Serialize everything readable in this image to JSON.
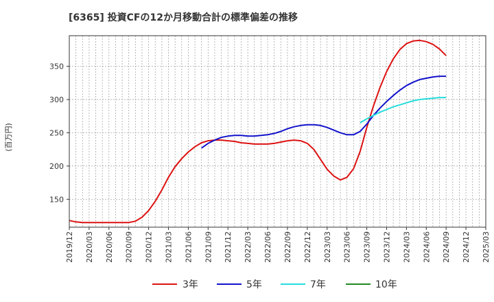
{
  "chart_data": {
    "type": "line",
    "title": "[6365]  投資CFの12か月移動合計の標準偏差の推移",
    "ylabel": "(百万円)",
    "xlabel": "",
    "ylim": [
      108,
      396
    ],
    "yticks": [
      150,
      200,
      250,
      300,
      350
    ],
    "xticks": [
      "2019/12",
      "2020/03",
      "2020/06",
      "2020/09",
      "2020/12",
      "2021/03",
      "2021/06",
      "2021/09",
      "2021/12",
      "2022/03",
      "2022/06",
      "2022/09",
      "2022/12",
      "2023/03",
      "2023/06",
      "2023/09",
      "2023/12",
      "2024/03",
      "2024/06",
      "2024/09",
      "2024/12",
      "2025/03"
    ],
    "grid": true,
    "legend_position": "bottom",
    "series": [
      {
        "name": "3年",
        "color": "#dd1111",
        "x": [
          "2019/12",
          "2020/01",
          "2020/02",
          "2020/03",
          "2020/04",
          "2020/05",
          "2020/06",
          "2020/07",
          "2020/08",
          "2020/09",
          "2020/10",
          "2020/11",
          "2020/12",
          "2021/01",
          "2021/02",
          "2021/03",
          "2021/04",
          "2021/05",
          "2021/06",
          "2021/07",
          "2021/08",
          "2021/09",
          "2021/10",
          "2021/11",
          "2021/12",
          "2022/01",
          "2022/02",
          "2022/03",
          "2022/04",
          "2022/05",
          "2022/06",
          "2022/07",
          "2022/08",
          "2022/09",
          "2022/10",
          "2022/11",
          "2022/12",
          "2023/01",
          "2023/02",
          "2023/03",
          "2023/04",
          "2023/05",
          "2023/06",
          "2023/07",
          "2023/08",
          "2023/09",
          "2023/10",
          "2023/11",
          "2023/12",
          "2024/01",
          "2024/02",
          "2024/03",
          "2024/04",
          "2024/05",
          "2024/06",
          "2024/07",
          "2024/08",
          "2024/09"
        ],
        "values": [
          118,
          116,
          115,
          115,
          115,
          115,
          115,
          115,
          115,
          115,
          117,
          123,
          133,
          147,
          164,
          183,
          199,
          211,
          221,
          229,
          235,
          238,
          239,
          239,
          238,
          237,
          235,
          234,
          233,
          233,
          233,
          234,
          236,
          238,
          239,
          238,
          234,
          225,
          210,
          195,
          185,
          179,
          183,
          196,
          222,
          258,
          290,
          318,
          342,
          361,
          375,
          384,
          388,
          389,
          387,
          383,
          376,
          366
        ]
      },
      {
        "name": "5年",
        "color": "#1111cc",
        "x": [
          "2021/08",
          "2021/09",
          "2021/10",
          "2021/11",
          "2021/12",
          "2022/01",
          "2022/02",
          "2022/03",
          "2022/04",
          "2022/05",
          "2022/06",
          "2022/07",
          "2022/08",
          "2022/09",
          "2022/10",
          "2022/11",
          "2022/12",
          "2023/01",
          "2023/02",
          "2023/03",
          "2023/04",
          "2023/05",
          "2023/06",
          "2023/07",
          "2023/08",
          "2023/09",
          "2023/10",
          "2023/11",
          "2023/12",
          "2024/01",
          "2024/02",
          "2024/03",
          "2024/04",
          "2024/05",
          "2024/06",
          "2024/07",
          "2024/08",
          "2024/09"
        ],
        "values": [
          227,
          234,
          239,
          243,
          245,
          246,
          246,
          245,
          245,
          246,
          247,
          249,
          252,
          256,
          259,
          261,
          262,
          262,
          261,
          258,
          254,
          250,
          247,
          247,
          252,
          263,
          276,
          287,
          297,
          306,
          314,
          321,
          326,
          330,
          332,
          334,
          335,
          335
        ]
      },
      {
        "name": "7年",
        "color": "#22dddd",
        "x": [
          "2023/08",
          "2023/09",
          "2023/10",
          "2023/11",
          "2023/12",
          "2024/01",
          "2024/02",
          "2024/03",
          "2024/04",
          "2024/05",
          "2024/06",
          "2024/07",
          "2024/08",
          "2024/09"
        ],
        "values": [
          265,
          271,
          276,
          281,
          285,
          289,
          292,
          295,
          298,
          300,
          301,
          302,
          303,
          303
        ]
      },
      {
        "name": "10年",
        "color": "#228822",
        "x": [],
        "values": []
      }
    ]
  }
}
